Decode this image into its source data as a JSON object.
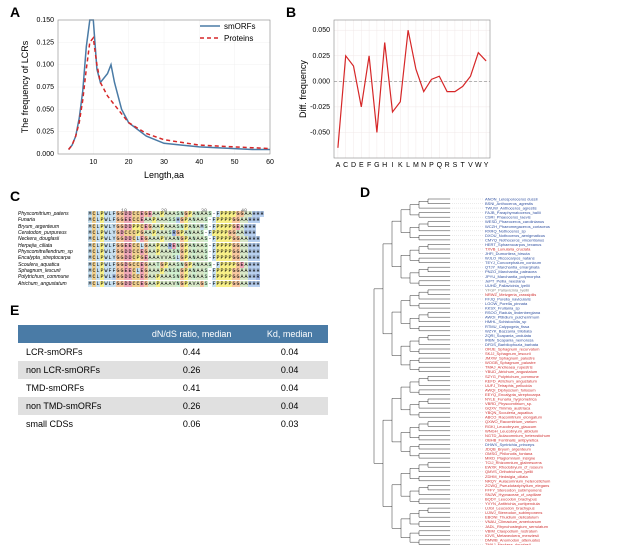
{
  "labels": {
    "A": "A",
    "B": "B",
    "C": "C",
    "D": "D",
    "E": "E"
  },
  "panelA": {
    "type": "line",
    "title": "",
    "xlabel": "Length,aa",
    "ylabel": "The frequency of LCRs",
    "xlim": [
      0,
      60
    ],
    "ylim": [
      0,
      0.15
    ],
    "xticks": [
      10,
      20,
      30,
      40,
      50,
      60
    ],
    "yticks": [
      0.0,
      0.025,
      0.05,
      0.075,
      0.1,
      0.125,
      0.15
    ],
    "series": [
      {
        "name": "smORFs",
        "color": "#4a7ba6",
        "dash": "none",
        "width": 1.5,
        "x": [
          3,
          4,
          5,
          6,
          7,
          8,
          9,
          10,
          11,
          12,
          14,
          15,
          16,
          18,
          20,
          25,
          30,
          35,
          40,
          45,
          50,
          55,
          60
        ],
        "y": [
          0.005,
          0.01,
          0.02,
          0.04,
          0.07,
          0.12,
          0.15,
          0.15,
          0.095,
          0.08,
          0.09,
          0.1,
          0.08,
          0.05,
          0.035,
          0.02,
          0.012,
          0.01,
          0.008,
          0.007,
          0.006,
          0.005,
          0.005
        ]
      },
      {
        "name": "Proteins",
        "color": "#d62728",
        "dash": "4,3",
        "width": 1.5,
        "x": [
          3,
          4,
          5,
          6,
          7,
          8,
          9,
          10,
          11,
          12,
          14,
          15,
          16,
          18,
          20,
          25,
          30,
          35,
          40,
          45,
          50,
          55,
          60
        ],
        "y": [
          0.005,
          0.01,
          0.02,
          0.035,
          0.06,
          0.095,
          0.125,
          0.13,
          0.1,
          0.08,
          0.065,
          0.06,
          0.055,
          0.045,
          0.035,
          0.023,
          0.016,
          0.013,
          0.01,
          0.009,
          0.008,
          0.007,
          0.006
        ]
      }
    ],
    "legend_pos": "top-right",
    "background": "#ffffff",
    "grid_color": "#f0f0f0"
  },
  "panelB": {
    "type": "line",
    "xlabel": "",
    "ylabel": "Diff. frequency",
    "categories": [
      "A",
      "C",
      "D",
      "E",
      "F",
      "G",
      "H",
      "I",
      "K",
      "L",
      "M",
      "N",
      "P",
      "Q",
      "R",
      "S",
      "T",
      "V",
      "W",
      "Y"
    ],
    "values": [
      -0.065,
      0.025,
      0.015,
      -0.025,
      0.025,
      -0.05,
      0.038,
      -0.03,
      -0.02,
      0.05,
      0.012,
      -0.01,
      0.002,
      0.005,
      -0.01,
      -0.01,
      -0.005,
      0.005,
      0.028,
      0.02
    ],
    "ylim": [
      -0.075,
      0.06
    ],
    "yticks": [
      -0.05,
      -0.025,
      0.0,
      0.025,
      0.05
    ],
    "color": "#d62728",
    "width": 1.2,
    "background": "#ffffff",
    "grid_color": "#f0e8e8"
  },
  "panelC": {
    "species": [
      "Physcomitrium_patens",
      "Funaria",
      "Bryum_argenteum",
      "Ceratodon_purpureus",
      "Neckera_douglasii",
      "Herpejia_ciliata",
      "Physcomitrellendrum_sp",
      "Encalypta_streptocarpa",
      "Scoulera_aquatica",
      "Sphagnum_lescurii",
      "Polytrichum_commune",
      "Atrichum_angustatum"
    ],
    "positions": [
      10,
      20,
      30,
      40
    ],
    "seqs": [
      "MCLPWLFGGDDCCEGEAAPAAASNGPANAAS-FPPPPGGAAHHH",
      "MCLPWLFGGEECCEAAPAAASSHGPANAAS-FPPPPGGAAHHH",
      "MCLPWLYGGDDPPCEGAAPAAASNPANAMS-FPPPPGEAHHH",
      "MCLPWLYGDCCCPGAAPAAASRGPANAAS-FPPPPGGAAHHH",
      "MCLPWLYGGDDCLEGAAAPVAANGPANAAS-FPPPPGGAAHHH",
      "MCLPWLFGGEECCLGAAPAARENGPANAAS-FPPPPGGAAHHH",
      "MCLPWLFGGDDCCEGAAPAAASNGPANAAS-FPPPPGGAAHHH",
      "MCLPWLYGGDDCPGEAAAVVASLGPANAAS-FPPPPGGAAHHH",
      "MCLPWLFGGDGCCEGAATGPAASNGPANAAS-FPPPPGEAHHH",
      "MCLPWFFGGEECLEGAAAPANSNGPANAAS-FPPPPGGAAHHH",
      "MCLPWLHGGDDCCEGAAPAAASNGPANAAS-FPPPPGGAAHHR",
      "MCLPWLFGGDDCCEGAAPAAAVNGPAVAGS-FPPPPGGAAHHH"
    ],
    "aa_colors": {
      "M": "#c8e0f0",
      "C": "#f0d090",
      "L": "#c8e0f0",
      "P": "#f8f088",
      "W": "#c8e0f0",
      "F": "#c8e0f0",
      "Y": "#c8e0f0",
      "G": "#f8c8a0",
      "D": "#f0a8b8",
      "E": "#f0a8b8",
      "A": "#d8e8c8",
      "V": "#d8e8c8",
      "I": "#d8e8c8",
      "S": "#d0f0d0",
      "T": "#d0f0d0",
      "N": "#d0f0d0",
      "Q": "#d0f0d0",
      "H": "#b8d0f0",
      "R": "#a0b8e8",
      "K": "#a0b8e8",
      "-": "#ffffff"
    }
  },
  "panelD": {
    "type": "tree",
    "tip_fontsize": 4,
    "colors": {
      "red": "#d03030",
      "blue": "#3050a0",
      "grey": "#888888"
    },
    "tips": [
      {
        "l": "ANON_Leiosporoceros dussii",
        "c": "blue"
      },
      {
        "l": "BSNI_Anthoceros_agrestis",
        "c": "blue"
      },
      {
        "l": "TWUW_Anthoceros_agrestis",
        "c": "blue"
      },
      {
        "l": "FAJB_Paraphymatoceros_hallii",
        "c": "blue"
      },
      {
        "l": "CSRI_Phaeoceros_laevis",
        "c": "blue"
      },
      {
        "l": "WESD_Phaeoceros_carolinianus",
        "c": "blue"
      },
      {
        "l": "WCZH_Phaeomegaceros_coriaceus",
        "c": "blue"
      },
      {
        "l": "RXRQ_Nothoceros_sp",
        "c": "blue"
      },
      {
        "l": "DXOU_Nothoceros_aenigmaticus",
        "c": "blue"
      },
      {
        "l": "CMYQ_Nothoceros_vincentianus",
        "c": "blue"
      },
      {
        "l": "HERT_Sphaerocarpos_texanus",
        "c": "blue"
      },
      {
        "l": "TXVB_Lunularia_cruciata",
        "c": "red"
      },
      {
        "l": "JHFI_Dumortiera_hirsuta",
        "c": "blue"
      },
      {
        "l": "WJLO_Riccocarpos_natans",
        "c": "blue"
      },
      {
        "l": "TEYJ_Conocephalum_conicum",
        "c": "blue"
      },
      {
        "l": "QTJY_Marchantia_emarginata",
        "c": "blue"
      },
      {
        "l": "PNZO_Marchantia_paleacea",
        "c": "blue"
      },
      {
        "l": "JPYU_Marchantia_polymorpha",
        "c": "blue"
      },
      {
        "l": "JePT_Pellia_neesiana",
        "c": "blue"
      },
      {
        "l": "UUHD_Pallavicinia_lyellii",
        "c": "blue"
      },
      {
        "l": "YFGP_Pallavicinia_lyellii",
        "c": "grey"
      },
      {
        "l": "NRWZ_Metzgeria_crassipilis",
        "c": "red"
      },
      {
        "l": "FFJQ_Porella_navicularis",
        "c": "blue"
      },
      {
        "l": "LGOW_Porella_pinnata",
        "c": "blue"
      },
      {
        "l": "KKSX_Frullania_sp",
        "c": "blue"
      },
      {
        "l": "RSOO_Radula_lindenbergiana",
        "c": "blue"
      },
      {
        "l": "AWOI_Ptilidium_pulcherrimum",
        "c": "blue"
      },
      {
        "l": "HMHL_Schistochila_sp",
        "c": "blue"
      },
      {
        "l": "RTMU_Calypogeia_fissa",
        "c": "blue"
      },
      {
        "l": "WZYK_Bazzania_trilobata",
        "c": "blue"
      },
      {
        "l": "ZQRI_Scapania_undulata",
        "c": "blue"
      },
      {
        "l": "IRBN_Scapania_nemorosa",
        "c": "blue"
      },
      {
        "l": "DFDS_Barbilophozia_barbata",
        "c": "blue"
      },
      {
        "l": "ORJE_Sphagnum_recurvatum",
        "c": "red"
      },
      {
        "l": "SKJJ_Sphagnum_lescurii",
        "c": "red"
      },
      {
        "l": "JMXW_Sphagnum_palustre",
        "c": "red"
      },
      {
        "l": "WOGB_Sphagnum_palustre",
        "c": "red"
      },
      {
        "l": "TMAJ_Andreaea_rupestris",
        "c": "red"
      },
      {
        "l": "YBUD_Atrichum_angustatum",
        "c": "red"
      },
      {
        "l": "SZYG_Polytrichum_commune",
        "c": "red"
      },
      {
        "l": "KEFD_Atrichum_angustatum",
        "c": "red"
      },
      {
        "l": "UUFJ_Tetraphis_pellucida",
        "c": "red"
      },
      {
        "l": "AWQI_Diphyscium_foliosum",
        "c": "red"
      },
      {
        "l": "EEYQ_Encalypta_streptocarpa",
        "c": "red"
      },
      {
        "l": "NYLE_Funaria_hygrometrica",
        "c": "red"
      },
      {
        "l": "VBRD_Physcomitrium_sp.",
        "c": "red"
      },
      {
        "l": "GQXV_Timmia_austriaca",
        "c": "red"
      },
      {
        "l": "YBQN_Scouleria_aquatica",
        "c": "red"
      },
      {
        "l": "ABCO_Racomitrium_elongatum",
        "c": "red"
      },
      {
        "l": "QXWO_Racomitrium_varium",
        "c": "red"
      },
      {
        "l": "RGKI_Leucobryum_glaucum",
        "c": "red"
      },
      {
        "l": "WNGH_Leucobryum_albidum",
        "c": "red"
      },
      {
        "l": "NGTD_Aulacomnium_heterostichum",
        "c": "red"
      },
      {
        "l": "OBHB_Fontinalis_antipyretica",
        "c": "red"
      },
      {
        "l": "DHWX_Syntrichia_princeps",
        "c": "blue"
      },
      {
        "l": "JDQB_Bryum_argenteum",
        "c": "red"
      },
      {
        "l": "OMSG_Philonotis_fontana",
        "c": "red"
      },
      {
        "l": "MIKD_Plagiomnium_insigne",
        "c": "red"
      },
      {
        "l": "TCIJ_Rhizomnium_glabrescens",
        "c": "red"
      },
      {
        "l": "EWXK_Rhodobryum_cf_roseum",
        "c": "red"
      },
      {
        "l": "QMVS_Orthotrichum_lyellii",
        "c": "red"
      },
      {
        "l": "ZDHM_Hedwigia_ciliata",
        "c": "red"
      },
      {
        "l": "NRQY_Aulacomnium_heterostichum",
        "c": "red"
      },
      {
        "l": "ZCWQ_Pseudotaxiphyllum_elegans",
        "c": "red"
      },
      {
        "l": "FFFY_Stereodon_subimponens",
        "c": "red"
      },
      {
        "l": "SNJW_Hypnaceae_cf_capillare",
        "c": "red"
      },
      {
        "l": "BQDY_Leucodon_brachypus",
        "c": "red"
      },
      {
        "l": "YVYN_Antitrichia_curtipendula",
        "c": "red"
      },
      {
        "l": "UJGI_Leucodon_brachypus",
        "c": "red"
      },
      {
        "l": "UJWJ_Stereodon_subimponens",
        "c": "red"
      },
      {
        "l": "EBONI_Thuidium_delicatulum",
        "c": "red"
      },
      {
        "l": "VNAU_Climacium_americanum",
        "c": "red"
      },
      {
        "l": "JADL_Rhynchostegium_serrulatum",
        "c": "red"
      },
      {
        "l": "VBIM_Claopodium_rostratum",
        "c": "red"
      },
      {
        "l": "IOVS_Metaneckera_menziesii",
        "c": "red"
      },
      {
        "l": "DMWB_Anomodon_attenuatus",
        "c": "red"
      },
      {
        "l": "TMAJ_Neckera_douglasii",
        "c": "red"
      }
    ]
  },
  "panelE": {
    "headers": [
      "",
      "dN/dS ratio, median",
      "Kd, median"
    ],
    "rows": [
      [
        "LCR-smORFs",
        "0.44",
        "0.04"
      ],
      [
        "non LCR-smORFs",
        "0.26",
        "0.04"
      ],
      [
        "TMD-smORFs",
        "0.41",
        "0.04"
      ],
      [
        "non TMD-smORFs",
        "0.26",
        "0.04"
      ],
      [
        "small CDSs",
        "0.06",
        "0.03"
      ]
    ],
    "header_bg": "#4a7ba6",
    "header_fg": "#ffffff",
    "alt_bg": "#e0e0e0"
  }
}
